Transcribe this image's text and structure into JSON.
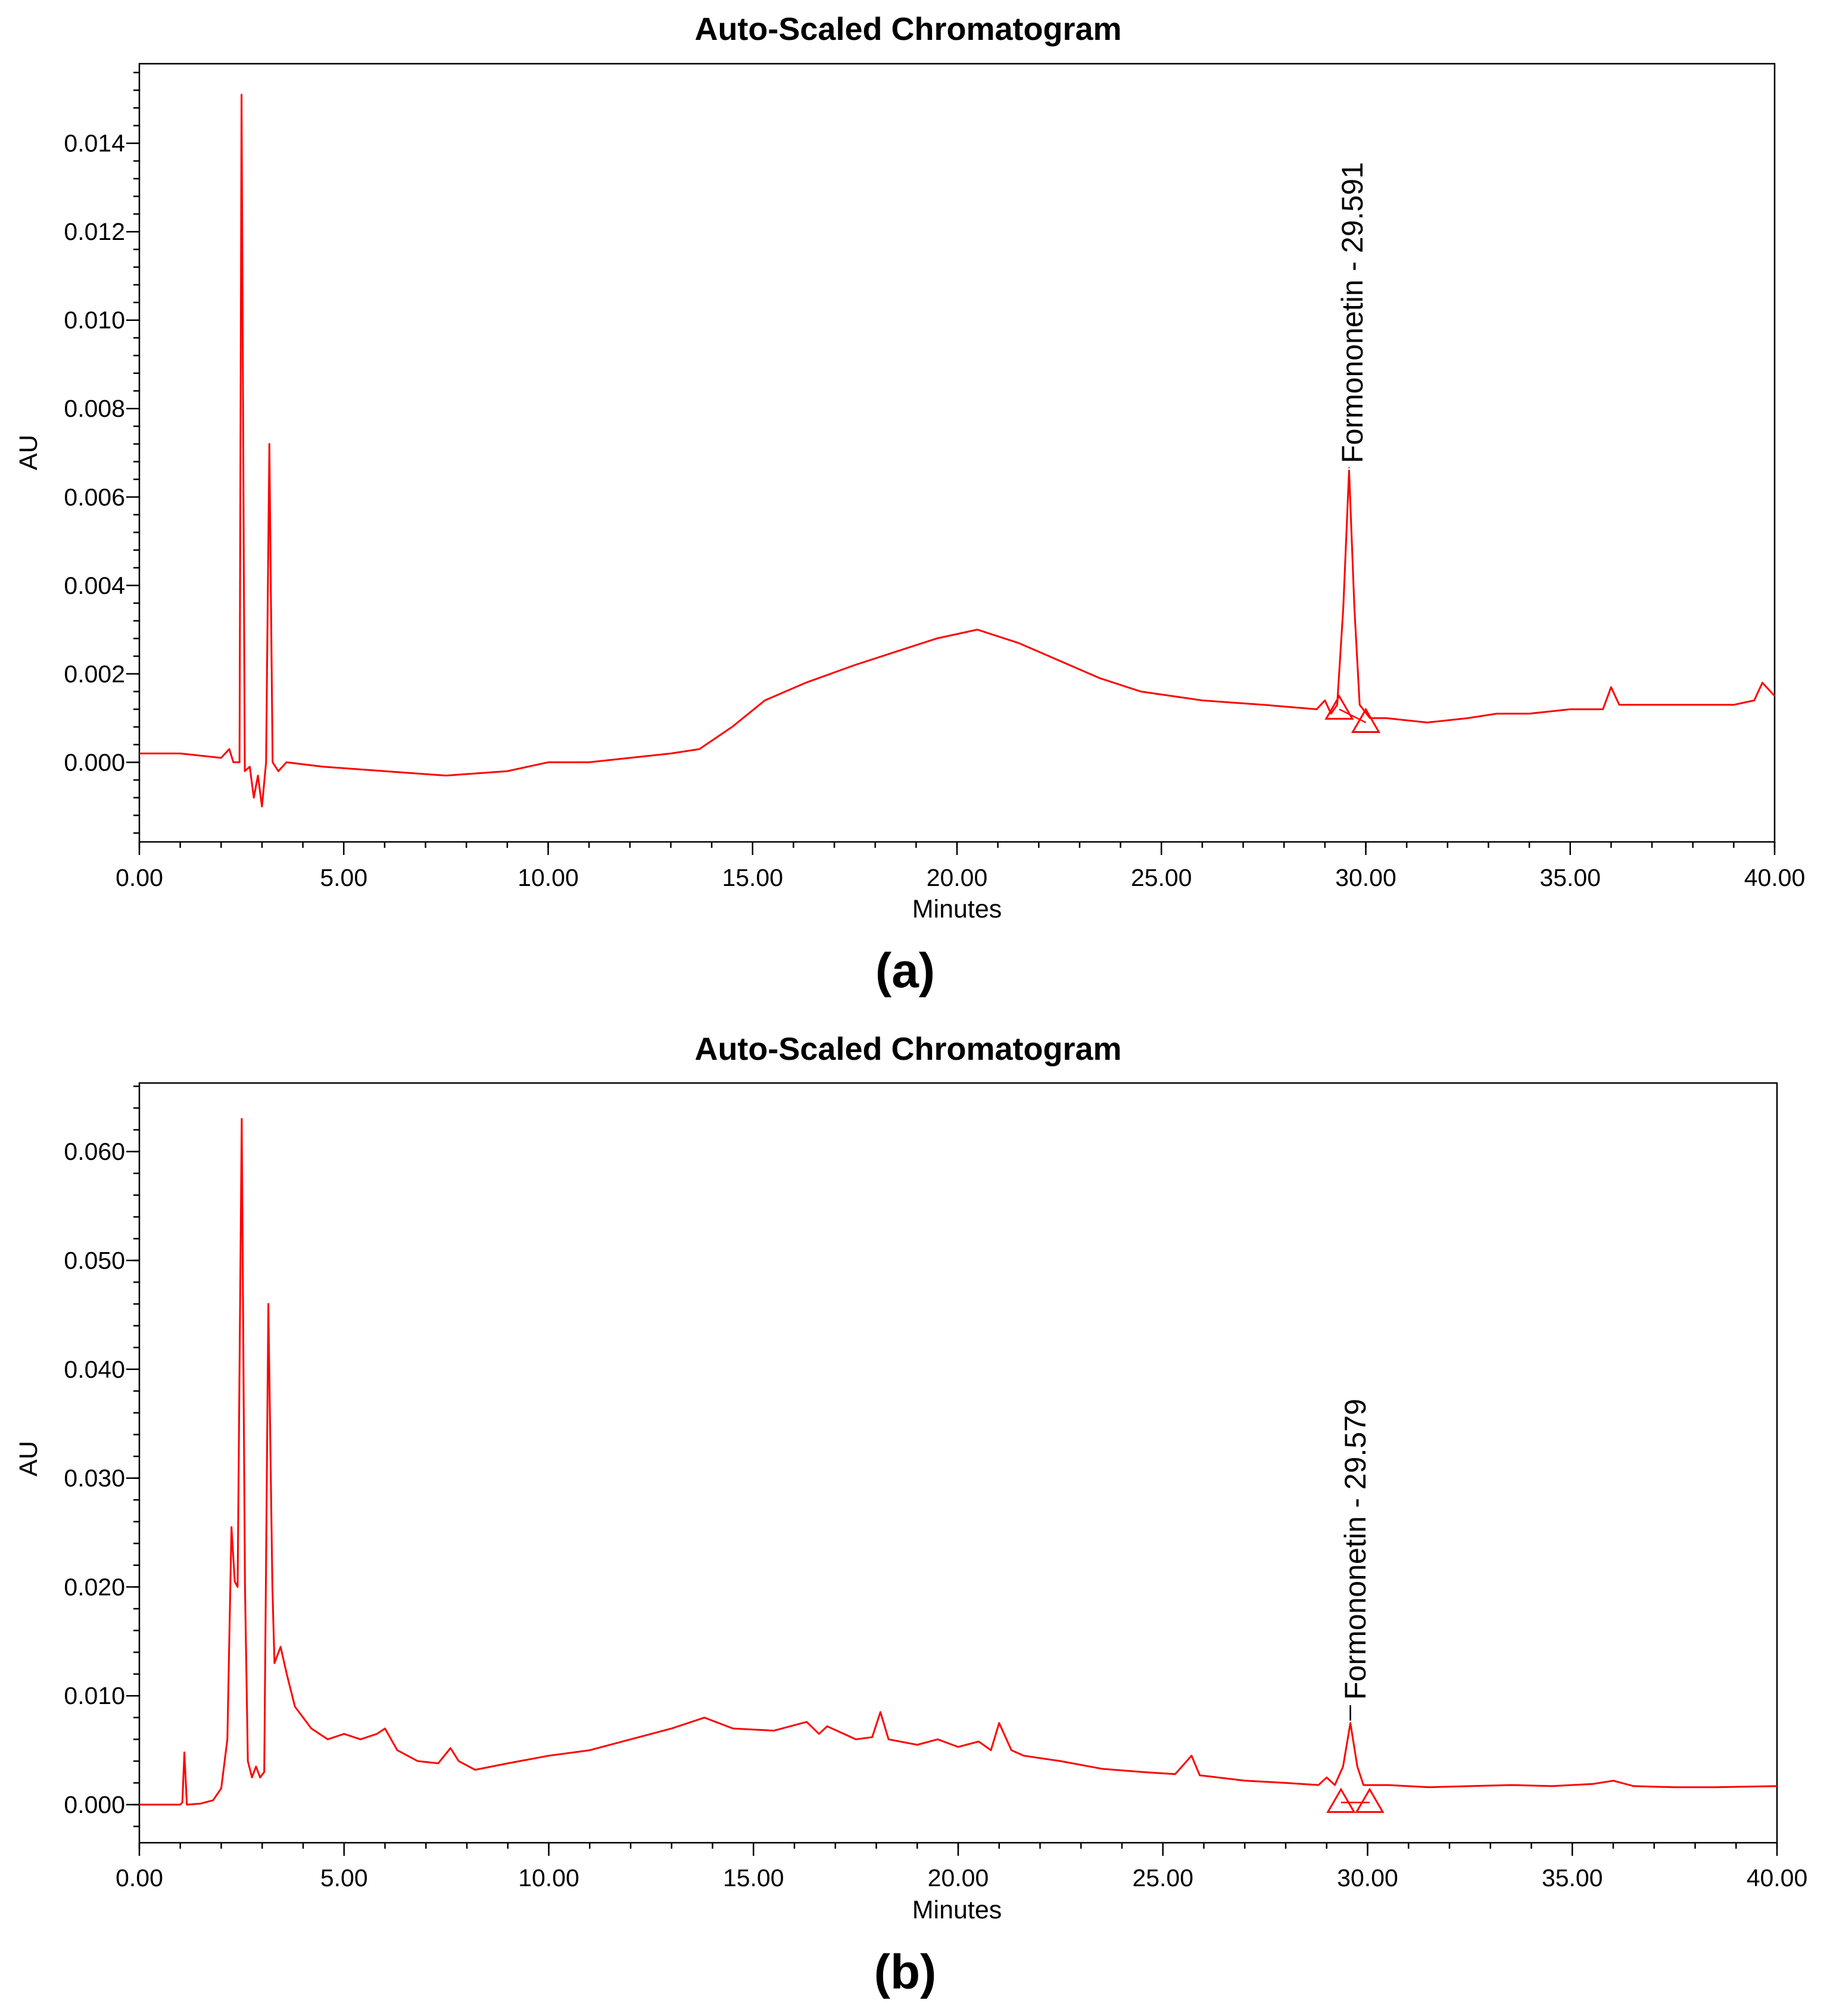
{
  "chart_data": [
    {
      "panel": "(a)",
      "type": "line",
      "title": "Auto-Scaled Chromatogram",
      "xlabel": "Minutes",
      "ylabel": "AU",
      "xlim": [
        0,
        40
      ],
      "ylim": [
        -0.0018,
        0.0158
      ],
      "x_ticks": [
        "0.00",
        "5.00",
        "10.00",
        "15.00",
        "20.00",
        "25.00",
        "30.00",
        "35.00",
        "40.00"
      ],
      "y_ticks": [
        "0.000",
        "0.002",
        "0.004",
        "0.006",
        "0.008",
        "0.010",
        "0.012",
        "0.014"
      ],
      "grid": false,
      "series": [
        {
          "name": "trace",
          "color": "#ff0000",
          "points": [
            [
              0.0,
              0.0002
            ],
            [
              1.0,
              0.0002
            ],
            [
              2.0,
              0.0001
            ],
            [
              2.2,
              0.0003
            ],
            [
              2.3,
              0.0
            ],
            [
              2.45,
              0.0
            ],
            [
              2.5,
              0.0151
            ],
            [
              2.58,
              -0.0002
            ],
            [
              2.7,
              -0.0001
            ],
            [
              2.8,
              -0.0008
            ],
            [
              2.9,
              -0.0003
            ],
            [
              3.0,
              -0.001
            ],
            [
              3.1,
              0.0
            ],
            [
              3.18,
              0.0072
            ],
            [
              3.26,
              0.0
            ],
            [
              3.4,
              -0.0002
            ],
            [
              3.6,
              0.0
            ],
            [
              4.5,
              -0.0001
            ],
            [
              6.0,
              -0.0002
            ],
            [
              7.5,
              -0.0003
            ],
            [
              9.0,
              -0.0002
            ],
            [
              10.0,
              0.0
            ],
            [
              11.0,
              0.0
            ],
            [
              12.0,
              0.0001
            ],
            [
              13.0,
              0.0002
            ],
            [
              13.7,
              0.0003
            ],
            [
              14.5,
              0.0008
            ],
            [
              15.3,
              0.0014
            ],
            [
              16.3,
              0.0018
            ],
            [
              17.5,
              0.0022
            ],
            [
              18.5,
              0.0025
            ],
            [
              19.5,
              0.0028
            ],
            [
              20.5,
              0.003
            ],
            [
              21.5,
              0.0027
            ],
            [
              22.5,
              0.0023
            ],
            [
              23.5,
              0.0019
            ],
            [
              24.5,
              0.0016
            ],
            [
              26.0,
              0.0014
            ],
            [
              27.5,
              0.0013
            ],
            [
              28.8,
              0.0012
            ],
            [
              29.0,
              0.0014
            ],
            [
              29.15,
              0.0011
            ],
            [
              29.3,
              0.0013
            ],
            [
              29.45,
              0.0035
            ],
            [
              29.59,
              0.0066
            ],
            [
              29.72,
              0.0035
            ],
            [
              29.85,
              0.0013
            ],
            [
              30.1,
              0.001
            ],
            [
              30.5,
              0.001
            ],
            [
              31.5,
              0.0009
            ],
            [
              32.5,
              0.001
            ],
            [
              33.2,
              0.0011
            ],
            [
              34.0,
              0.0011
            ],
            [
              35.0,
              0.0012
            ],
            [
              35.8,
              0.0012
            ],
            [
              36.0,
              0.0017
            ],
            [
              36.2,
              0.0013
            ],
            [
              37.0,
              0.0013
            ],
            [
              38.0,
              0.0013
            ],
            [
              39.0,
              0.0013
            ],
            [
              39.5,
              0.0014
            ],
            [
              39.7,
              0.0018
            ],
            [
              40.0,
              0.0015
            ]
          ]
        }
      ],
      "annotations": [
        {
          "text": "Formononetin - 29.591",
          "x": 29.591,
          "y": 0.0066
        }
      ],
      "peak_markers": {
        "start_x": 29.35,
        "end_x": 30.0,
        "start_y": 0.0012,
        "end_y": 0.0009
      }
    },
    {
      "panel": "(b)",
      "type": "line",
      "title": "Auto-Scaled Chromatogram",
      "xlabel": "Minutes",
      "ylabel": "AU",
      "xlim": [
        0,
        40
      ],
      "ylim": [
        -0.0035,
        0.0663
      ],
      "x_ticks": [
        "0.00",
        "5.00",
        "10.00",
        "15.00",
        "20.00",
        "25.00",
        "30.00",
        "35.00",
        "40.00"
      ],
      "y_ticks": [
        "0.000",
        "0.010",
        "0.020",
        "0.030",
        "0.040",
        "0.050",
        "0.060"
      ],
      "grid": false,
      "series": [
        {
          "name": "trace",
          "color": "#ff0000",
          "points": [
            [
              0.0,
              0.0
            ],
            [
              1.0,
              0.0
            ],
            [
              1.05,
              0.0002
            ],
            [
              1.1,
              0.0048
            ],
            [
              1.16,
              0.0
            ],
            [
              1.5,
              0.0001
            ],
            [
              1.8,
              0.0004
            ],
            [
              2.0,
              0.0015
            ],
            [
              2.15,
              0.006
            ],
            [
              2.25,
              0.0255
            ],
            [
              2.33,
              0.0205
            ],
            [
              2.4,
              0.02
            ],
            [
              2.5,
              0.063
            ],
            [
              2.58,
              0.02
            ],
            [
              2.65,
              0.004
            ],
            [
              2.75,
              0.0025
            ],
            [
              2.85,
              0.0035
            ],
            [
              2.95,
              0.0025
            ],
            [
              3.05,
              0.003
            ],
            [
              3.15,
              0.046
            ],
            [
              3.25,
              0.02
            ],
            [
              3.3,
              0.013
            ],
            [
              3.45,
              0.0145
            ],
            [
              3.6,
              0.012
            ],
            [
              3.8,
              0.009
            ],
            [
              4.2,
              0.007
            ],
            [
              4.6,
              0.006
            ],
            [
              5.0,
              0.0065
            ],
            [
              5.4,
              0.006
            ],
            [
              5.8,
              0.0065
            ],
            [
              6.0,
              0.007
            ],
            [
              6.3,
              0.005
            ],
            [
              6.8,
              0.004
            ],
            [
              7.3,
              0.0038
            ],
            [
              7.6,
              0.0052
            ],
            [
              7.8,
              0.004
            ],
            [
              8.2,
              0.0032
            ],
            [
              9.0,
              0.0038
            ],
            [
              10.0,
              0.0045
            ],
            [
              11.0,
              0.005
            ],
            [
              12.0,
              0.006
            ],
            [
              12.5,
              0.0065
            ],
            [
              13.0,
              0.007
            ],
            [
              13.8,
              0.008
            ],
            [
              14.5,
              0.007
            ],
            [
              15.5,
              0.0068
            ],
            [
              16.3,
              0.0076
            ],
            [
              16.6,
              0.0065
            ],
            [
              16.8,
              0.0072
            ],
            [
              17.5,
              0.006
            ],
            [
              17.9,
              0.0062
            ],
            [
              18.1,
              0.0085
            ],
            [
              18.3,
              0.006
            ],
            [
              19.0,
              0.0055
            ],
            [
              19.5,
              0.006
            ],
            [
              20.0,
              0.0053
            ],
            [
              20.5,
              0.0058
            ],
            [
              20.8,
              0.005
            ],
            [
              21.0,
              0.0075
            ],
            [
              21.3,
              0.005
            ],
            [
              21.6,
              0.0045
            ],
            [
              22.5,
              0.004
            ],
            [
              23.5,
              0.0033
            ],
            [
              24.5,
              0.003
            ],
            [
              25.3,
              0.0028
            ],
            [
              25.7,
              0.0045
            ],
            [
              25.9,
              0.0027
            ],
            [
              27.0,
              0.0022
            ],
            [
              28.0,
              0.002
            ],
            [
              28.8,
              0.0018
            ],
            [
              29.0,
              0.0025
            ],
            [
              29.2,
              0.0018
            ],
            [
              29.4,
              0.0035
            ],
            [
              29.58,
              0.0075
            ],
            [
              29.75,
              0.0035
            ],
            [
              29.9,
              0.0018
            ],
            [
              30.5,
              0.0018
            ],
            [
              31.5,
              0.0016
            ],
            [
              32.5,
              0.0017
            ],
            [
              33.5,
              0.0018
            ],
            [
              34.5,
              0.0017
            ],
            [
              35.5,
              0.0019
            ],
            [
              36.0,
              0.0022
            ],
            [
              36.5,
              0.0017
            ],
            [
              37.5,
              0.0016
            ],
            [
              38.5,
              0.0016
            ],
            [
              40.0,
              0.0017
            ]
          ]
        }
      ],
      "annotations": [
        {
          "text": "Formononetin - 29.579",
          "x": 29.579,
          "y": 0.0075
        }
      ],
      "peak_markers": {
        "start_x": 29.35,
        "end_x": 30.05,
        "start_y": 0.0002,
        "end_y": 0.0002
      }
    }
  ]
}
